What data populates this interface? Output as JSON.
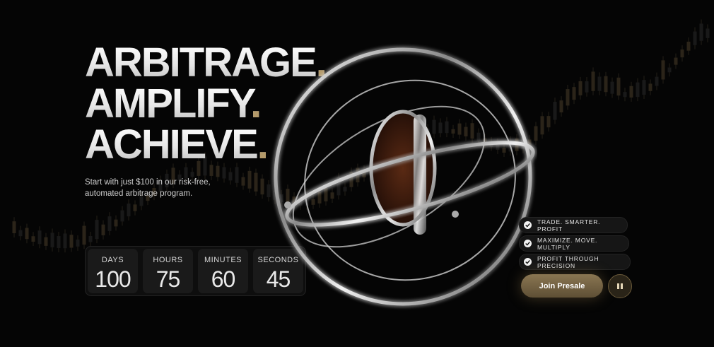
{
  "hero": {
    "line1": "ARBITRAGE",
    "line2": "AMPLIFY",
    "line3": "ACHIEVE",
    "dot": ".",
    "subtitle": "Start with just $100 in our risk-free, automated arbitrage program."
  },
  "countdown": [
    {
      "label": "DAYS",
      "value": "100"
    },
    {
      "label": "HOURS",
      "value": "75"
    },
    {
      "label": "MINUTES",
      "value": "60"
    },
    {
      "label": "SECONDS",
      "value": "45"
    }
  ],
  "tags": [
    "TRADE. SMARTER. PROFIT",
    "MAXIMIZE. MOVE. MULTIPLY",
    "PROFIT THROUGH PRECISION"
  ],
  "cta": {
    "join_label": "Join Presale"
  },
  "colors": {
    "background": "#050505",
    "accent_gold": "#b49a6a",
    "button_gold": "#7a6847"
  },
  "icons": [
    "check-icon",
    "pause-icon"
  ]
}
